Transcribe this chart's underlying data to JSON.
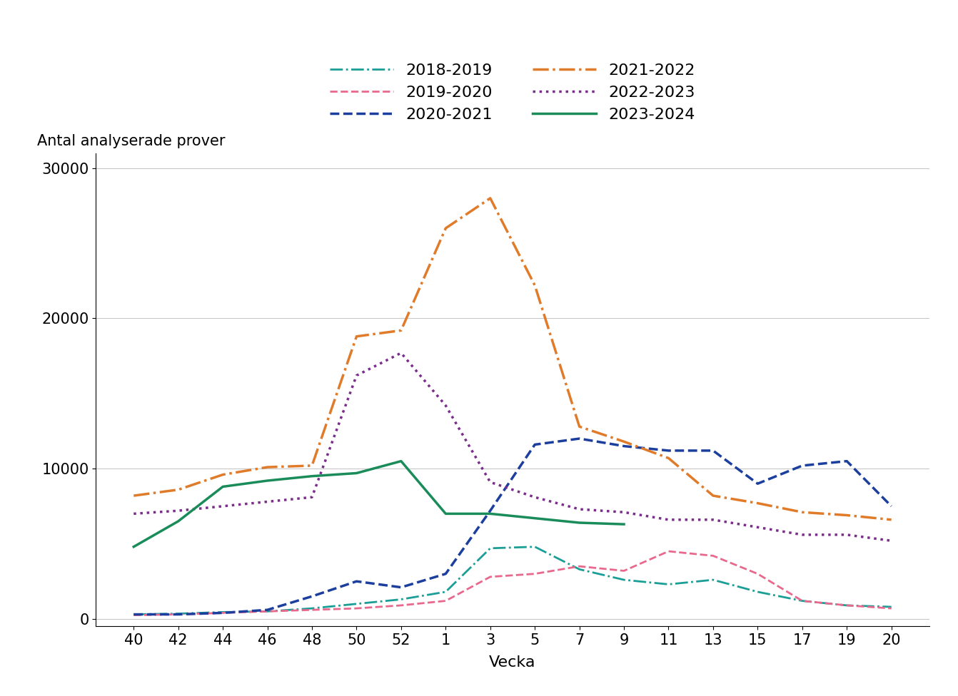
{
  "title": "",
  "ylabel": "Antal analyserade prover",
  "xlabel": "Vecka",
  "x_labels": [
    "40",
    "42",
    "44",
    "46",
    "48",
    "50",
    "52",
    "1",
    "3",
    "5",
    "7",
    "9",
    "11",
    "13",
    "15",
    "17",
    "19",
    "20"
  ],
  "x_positions": [
    0,
    1,
    2,
    3,
    4,
    5,
    6,
    7,
    8,
    9,
    10,
    11,
    12,
    13,
    14,
    15,
    16,
    17
  ],
  "ylim": [
    -500,
    31000
  ],
  "yticks": [
    0,
    10000,
    20000,
    30000
  ],
  "series": [
    {
      "label": "2018-2019",
      "color": "#1a9e96",
      "linestyle": "dashdot",
      "linewidth": 2.0,
      "values": [
        300,
        350,
        450,
        500,
        700,
        1000,
        1300,
        1800,
        4700,
        4800,
        3300,
        2600,
        2300,
        2600,
        1800,
        1200,
        900,
        800
      ]
    },
    {
      "label": "2019-2020",
      "color": "#e8698d",
      "linestyle": "dashed",
      "linewidth": 2.0,
      "values": [
        250,
        300,
        400,
        500,
        600,
        700,
        900,
        1200,
        2800,
        3000,
        3500,
        3200,
        4500,
        4200,
        3000,
        1200,
        900,
        700
      ]
    },
    {
      "label": "2020-2021",
      "color": "#1c3f9e",
      "linestyle": "dashed",
      "linewidth": 2.5,
      "values": [
        300,
        300,
        400,
        600,
        1500,
        2500,
        2100,
        3000,
        7200,
        11600,
        12000,
        11500,
        11200,
        11200,
        9000,
        10200,
        10500,
        7500
      ]
    },
    {
      "label": "2021-2022",
      "color": "#e07b2a",
      "linestyle": "dashdot",
      "linewidth": 2.5,
      "values": [
        8200,
        8600,
        9600,
        10100,
        10200,
        18800,
        19200,
        26000,
        28000,
        22200,
        12800,
        11800,
        10700,
        8200,
        7700,
        7100,
        6900,
        6600
      ]
    },
    {
      "label": "2022-2023",
      "color": "#7b2d8b",
      "linestyle": "dotted",
      "linewidth": 2.5,
      "values": [
        7000,
        7200,
        7500,
        7800,
        8100,
        16200,
        17700,
        14200,
        9100,
        8100,
        7300,
        7100,
        6600,
        6600,
        6100,
        5600,
        5600,
        5200
      ]
    },
    {
      "label": "2023-2024",
      "color": "#1a8c5a",
      "linestyle": "solid",
      "linewidth": 2.5,
      "values": [
        4800,
        6500,
        8800,
        9200,
        9500,
        9700,
        10500,
        7000,
        7000,
        6700,
        6400,
        6300,
        null,
        null,
        null,
        null,
        null,
        null
      ]
    }
  ],
  "background_color": "#ffffff",
  "grid_color": "#c8c8c8",
  "legend_fontsize": 16,
  "axis_fontsize": 16,
  "tick_fontsize": 15,
  "ylabel_fontsize": 15
}
